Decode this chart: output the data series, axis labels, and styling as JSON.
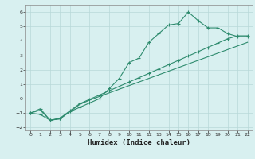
{
  "line1_x": [
    0,
    1,
    2,
    3,
    4,
    5,
    6,
    7,
    8,
    9,
    10,
    11,
    12,
    13,
    14,
    15,
    16,
    17,
    18,
    19,
    20,
    21,
    22
  ],
  "line1_y": [
    -1.0,
    -1.1,
    -1.5,
    -1.4,
    -0.9,
    -0.6,
    -0.3,
    0.0,
    0.7,
    1.4,
    2.5,
    2.8,
    3.9,
    4.5,
    5.1,
    5.2,
    6.0,
    5.4,
    4.9,
    4.9,
    4.5,
    4.3,
    4.3
  ],
  "line2_x": [
    0,
    1,
    2,
    3,
    4,
    5,
    6,
    7,
    8,
    9,
    10,
    11,
    12,
    13,
    14,
    15,
    16,
    17,
    18,
    19,
    20,
    21,
    22
  ],
  "line2_y": [
    -1.0,
    -0.8,
    -1.5,
    -1.4,
    -0.9,
    -0.4,
    -0.1,
    0.15,
    0.4,
    0.65,
    0.9,
    1.15,
    1.4,
    1.65,
    1.9,
    2.15,
    2.4,
    2.65,
    2.9,
    3.15,
    3.4,
    3.65,
    3.9
  ],
  "line3_x": [
    0,
    1,
    2,
    3,
    4,
    5,
    6,
    7,
    8,
    9,
    10,
    11,
    12,
    13,
    14,
    15,
    16,
    17,
    18,
    19,
    20,
    21,
    22
  ],
  "line3_y": [
    -1.0,
    -0.7,
    -1.5,
    -1.35,
    -0.85,
    -0.35,
    -0.05,
    0.25,
    0.55,
    0.85,
    1.15,
    1.45,
    1.75,
    2.05,
    2.35,
    2.65,
    2.95,
    3.25,
    3.55,
    3.85,
    4.15,
    4.35,
    4.35
  ],
  "line_color": "#2e8b6e",
  "bg_color": "#d8f0f0",
  "grid_color": "#b8d8d8",
  "xlabel": "Humidex (Indice chaleur)",
  "xlim": [
    -0.5,
    22.5
  ],
  "ylim": [
    -2.2,
    6.5
  ],
  "xticks": [
    0,
    1,
    2,
    3,
    4,
    5,
    6,
    7,
    8,
    9,
    10,
    11,
    12,
    13,
    14,
    15,
    16,
    17,
    18,
    19,
    20,
    21,
    22
  ],
  "yticks": [
    -2,
    -1,
    0,
    1,
    2,
    3,
    4,
    5,
    6
  ],
  "marker": "+",
  "markersize": 3,
  "linewidth": 0.8
}
